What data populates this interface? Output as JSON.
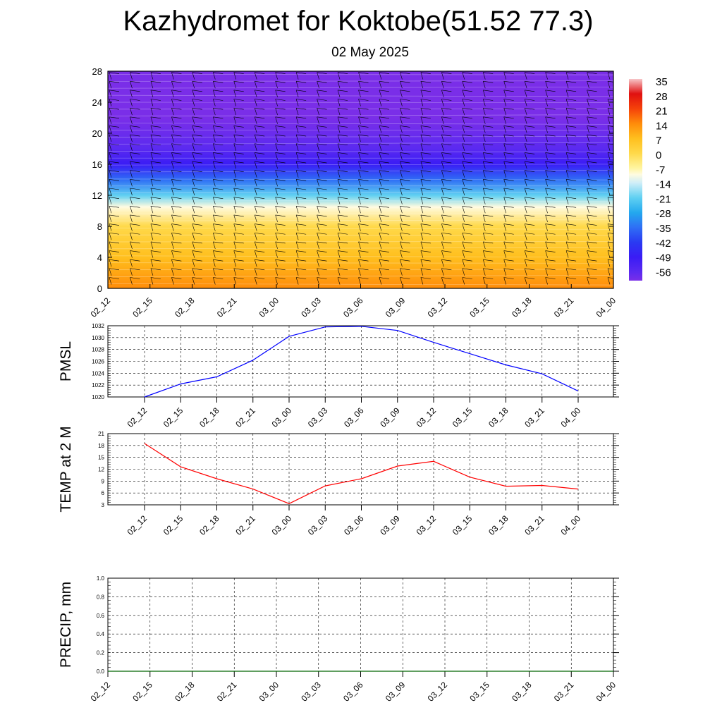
{
  "title": "Kazhydromet for Koktobe(51.52 77.3)",
  "subtitle": "02 May 2025",
  "colors": {
    "pmsl_line": "#0000ff",
    "temp_line": "#ff0000",
    "precip_line": "#006400",
    "grid": "#000000"
  },
  "chart_data": [
    {
      "type": "heatmap",
      "title": "",
      "x_tick_labels": [
        "02_12",
        "02_15",
        "02_18",
        "02_21",
        "03_00",
        "03_03",
        "03_06",
        "03_09",
        "03_12",
        "03_15",
        "03_18",
        "03_21",
        "04_00"
      ],
      "y_ticks": [
        0,
        4,
        8,
        12,
        16,
        20,
        24,
        28
      ],
      "ylim": [
        0,
        28
      ],
      "colorbar_labels": [
        "35",
        "28",
        "21",
        "14",
        "7",
        "0",
        "-7",
        "-14",
        "-21",
        "-28",
        "-35",
        "-42",
        "-49",
        "-56"
      ],
      "temperature_profile": [
        {
          "level": 0,
          "value": 18
        },
        {
          "level": 4,
          "value": 10
        },
        {
          "level": 8,
          "value": 3
        },
        {
          "level": 10.5,
          "value": -7
        },
        {
          "level": 12,
          "value": -14
        },
        {
          "level": 14,
          "value": -28
        },
        {
          "level": 16,
          "value": -45
        },
        {
          "level": 18,
          "value": -55
        },
        {
          "level": 22,
          "value": -58
        },
        {
          "level": 28,
          "value": -60
        }
      ],
      "wind_barbs": true
    },
    {
      "type": "line",
      "ylabel": "PMSL",
      "x_tick_labels": [
        "02_12",
        "02_15",
        "02_18",
        "02_21",
        "03_00",
        "03_03",
        "03_06",
        "03_09",
        "03_12",
        "03_15",
        "03_18",
        "03_21",
        "04_00"
      ],
      "y_ticks": [
        1020,
        1022,
        1024,
        1026,
        1028,
        1030,
        1032
      ],
      "ylim": [
        1020,
        1032
      ],
      "grid": true,
      "series": [
        {
          "values": [
            1020.0,
            1022.2,
            1023.4,
            1026.2,
            1030.2,
            1031.8,
            1031.9,
            1031.2,
            1029.2,
            1027.3,
            1025.4,
            1023.9,
            1021.0
          ]
        }
      ]
    },
    {
      "type": "line",
      "ylabel": "TEMP at 2 M",
      "x_tick_labels": [
        "02_12",
        "02_15",
        "02_18",
        "02_21",
        "03_00",
        "03_03",
        "03_06",
        "03_09",
        "03_12",
        "03_15",
        "03_18",
        "03_21",
        "04_00"
      ],
      "y_ticks": [
        3,
        6,
        9,
        12,
        15,
        18,
        21
      ],
      "ylim": [
        3,
        21
      ],
      "grid": true,
      "series": [
        {
          "values": [
            18.5,
            12.6,
            9.6,
            7.0,
            3.3,
            7.8,
            9.6,
            12.8,
            14.0,
            10.0,
            7.7,
            7.9,
            7.0
          ]
        }
      ]
    },
    {
      "type": "line",
      "ylabel": "PRECIP, mm",
      "x_tick_labels": [
        "02_12",
        "02_15",
        "02_18",
        "02_21",
        "03_00",
        "03_03",
        "03_06",
        "03_09",
        "03_12",
        "03_15",
        "03_18",
        "03_21",
        "04_00"
      ],
      "y_ticks": [
        "0.0",
        "0.2",
        "0.4",
        "0.6",
        "0.8",
        "1.0"
      ],
      "ylim": [
        0,
        1
      ],
      "grid": true,
      "series": [
        {
          "values": [
            0,
            0,
            0,
            0,
            0,
            0,
            0,
            0,
            0,
            0,
            0,
            0,
            0
          ]
        }
      ]
    }
  ]
}
